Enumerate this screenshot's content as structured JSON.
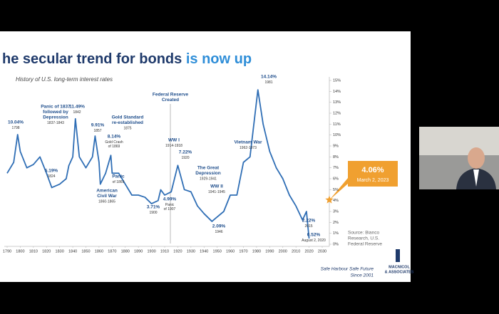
{
  "chart_data": {
    "type": "line",
    "title": "he secular trend for bonds ",
    "title_highlight": "is now up",
    "subtitle": "History of U.S. long-term interest rates",
    "x": [
      1790,
      1795,
      1798,
      1800,
      1805,
      1810,
      1815,
      1820,
      1824,
      1830,
      1835,
      1837,
      1840,
      1842,
      1845,
      1850,
      1855,
      1857,
      1860,
      1861,
      1865,
      1869,
      1870,
      1875,
      1880,
      1885,
      1890,
      1895,
      1900,
      1905,
      1907,
      1910,
      1915,
      1920,
      1925,
      1930,
      1935,
      1940,
      1946,
      1950,
      1955,
      1960,
      1965,
      1970,
      1975,
      1981,
      1985,
      1990,
      1995,
      2000,
      2005,
      2010,
      2015,
      2018,
      2020
    ],
    "series": [
      {
        "name": "U.S. long-term interest rate",
        "color": "#2f6eb5",
        "values": [
          6.5,
          7.5,
          10.04,
          8.5,
          7.0,
          7.3,
          8.0,
          6.5,
          5.19,
          5.5,
          6.0,
          7.2,
          8.0,
          11.49,
          8.0,
          7.0,
          8.0,
          9.91,
          7.5,
          5.5,
          6.5,
          8.14,
          6.5,
          6.5,
          5.5,
          4.5,
          4.5,
          4.3,
          3.71,
          4.0,
          4.99,
          4.5,
          4.8,
          7.22,
          5.0,
          4.8,
          3.5,
          2.8,
          2.09,
          2.5,
          3.0,
          4.5,
          4.5,
          7.5,
          8.0,
          14.14,
          11.0,
          8.5,
          7.0,
          6.0,
          4.5,
          3.5,
          2.22,
          3.0,
          0.52
        ]
      }
    ],
    "xlim": [
      1790,
      2030
    ],
    "xticks": [
      1790,
      1800,
      1810,
      1820,
      1830,
      1840,
      1850,
      1860,
      1870,
      1880,
      1890,
      1900,
      1910,
      1920,
      1930,
      1940,
      1950,
      1960,
      1970,
      1980,
      1990,
      2000,
      2010,
      2020,
      2030
    ],
    "ylim": [
      0,
      15
    ],
    "yticks": [
      {
        "value": 0,
        "label": "0%"
      },
      {
        "value": 1,
        "label": "1%"
      },
      {
        "value": 2,
        "label": "2%"
      },
      {
        "value": 3,
        "label": "3%"
      },
      {
        "value": 4,
        "label": "4%"
      },
      {
        "value": 5,
        "label": "5%"
      },
      {
        "value": 6,
        "label": "6%"
      },
      {
        "value": 7,
        "label": "7%"
      },
      {
        "value": 8,
        "label": "8%"
      },
      {
        "value": 9,
        "label": "9%"
      },
      {
        "value": 10,
        "label": "10%"
      },
      {
        "value": 11,
        "label": "11%"
      },
      {
        "value": 12,
        "label": "12%"
      },
      {
        "value": 13,
        "label": "13%"
      },
      {
        "value": 14,
        "label": "14%"
      },
      {
        "value": 15,
        "label": "15%"
      }
    ],
    "latest": {
      "value": 4.06,
      "label": "4.06%",
      "date": "March 2, 2023",
      "color": "#f0a030"
    },
    "annotations": [
      [
        "10.04%",
        "1798"
      ],
      [
        "Panic of 1837",
        "followed by",
        "Depression",
        "1837-1843"
      ],
      [
        "11.49%",
        "1842"
      ],
      [
        "9.91%",
        "1857"
      ],
      [
        "Gold Standard",
        "re-established",
        "1875"
      ],
      [
        "8.14%",
        "Gold Crash",
        "of 1869"
      ],
      [
        "Panic",
        "of 1869"
      ],
      [
        "5.19%",
        "1824"
      ],
      [
        "American",
        "Civil War",
        "1860-1865"
      ],
      [
        "Federal Reserve",
        "Created"
      ],
      [
        "WW I",
        "1914-1918"
      ],
      [
        "7.22%",
        "1920"
      ],
      [
        "4.99%",
        "Panic",
        "of 1907"
      ],
      [
        "3.71%",
        "1900"
      ],
      [
        "The Great",
        "Depression",
        "1929-1941"
      ],
      [
        "WW II",
        "1941-1945"
      ],
      [
        "2.09%",
        "1946"
      ],
      [
        "Vietnam War",
        "1962-1973"
      ],
      [
        "14.14%",
        "1981"
      ],
      [
        "2.22%",
        "2015"
      ],
      [
        "0.52%",
        "August 2, 2020"
      ]
    ],
    "source": [
      "Source: Bianco",
      "Research, U.S.",
      "Federal Reserve"
    ],
    "footer": [
      "Safe Harbour Safe Future",
      "Since 2001"
    ],
    "logo": [
      "MACNICOL",
      "& ASSOCIATES"
    ]
  }
}
